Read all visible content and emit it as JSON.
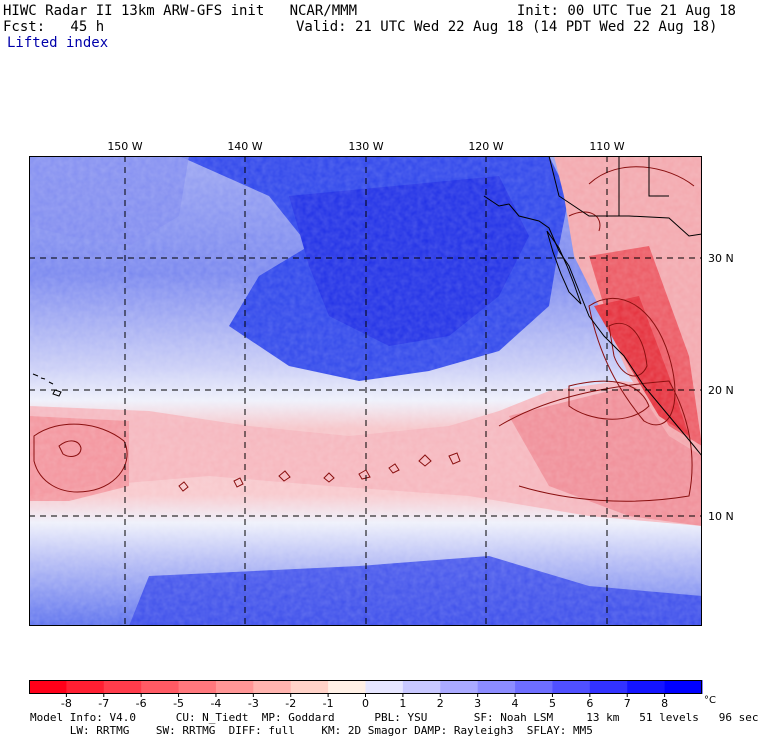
{
  "header": {
    "line1_left": "HIWC Radar II 13km ARW-GFS init   NCAR/MMM",
    "line1_right": "Init: 00 UTC Tue 21 Aug 18",
    "fcst": "Fcst:   45 h",
    "valid": "Valid: 21 UTC Wed 22 Aug 18 (14 PDT Wed 22 Aug 18)",
    "field": "Lifted index"
  },
  "map": {
    "lon_labels": [
      "150 W",
      "140 W",
      "130 W",
      "120 W",
      "110 W"
    ],
    "lat_labels": [
      "30 N",
      "20 N",
      "10 N"
    ],
    "colors": {
      "deep_blue": "#1f2fe6",
      "mid_blue": "#5a6fee",
      "light_blue": "#c9cdf6",
      "neutral": "#f4eff4",
      "light_red": "#f6c4c8",
      "mid_red": "#f18088",
      "deep_red": "#ea2f3c",
      "contour": "#8a1010",
      "coast": "#000000"
    }
  },
  "colorbar": {
    "tick_labels": [
      "-8",
      "-7",
      "-6",
      "-5",
      "-4",
      "-3",
      "-2",
      "-1",
      "0",
      "1",
      "2",
      "3",
      "4",
      "5",
      "6",
      "7",
      "8"
    ],
    "unit": "°C",
    "colors": [
      "#ff0019",
      "#ff1f32",
      "#ff3c4b",
      "#ff5a64",
      "#ff787d",
      "#ff9696",
      "#ffb4af",
      "#ffd2c8",
      "#fff0e6",
      "#e6e6ff",
      "#c8c8ff",
      "#aaaaff",
      "#8c8cff",
      "#6e6eff",
      "#5050ff",
      "#3232ff",
      "#1414ff",
      "#0000ff"
    ]
  },
  "footer": {
    "line1": "Model Info: V4.0      CU: N_Tiedt  MP: Goddard      PBL: YSU       SF: Noah LSM     13 km   51 levels   96 sec",
    "line2": "      LW: RRTMG    SW: RRTMG  DIFF: full    KM: 2D Smagor DAMP: Rayleigh3  SFLAY: MM5"
  }
}
